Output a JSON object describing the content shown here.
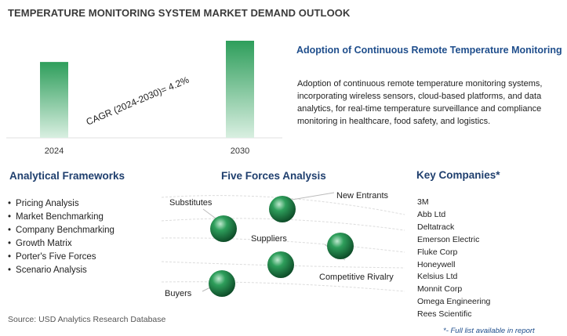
{
  "page": {
    "title": "TEMPERATURE MONITORING SYSTEM MARKET DEMAND OUTLOOK",
    "source": "Source: USD Analytics Research Database",
    "footnote": "*- Full list available in report"
  },
  "chart_data": {
    "type": "bar",
    "categories": [
      "2024",
      "2030"
    ],
    "values": [
      1.0,
      1.28
    ],
    "annotation": "CAGR (2024-2030)=  4.2%",
    "bar_color_top": "#2e9e5b",
    "bar_color_bottom": "#d9efe1",
    "grid": false,
    "legend": "none"
  },
  "side_panel": {
    "heading": "Adoption of Continuous Remote Temperature Monitoring",
    "body": "Adoption of continuous remote temperature monitoring systems, incorporating wireless sensors, cloud-based platforms, and data analytics, for real-time temperature surveillance and compliance monitoring in healthcare, food safety, and logistics."
  },
  "analytical_frameworks": {
    "title": "Analytical Frameworks",
    "items": [
      "Pricing Analysis",
      "Market Benchmarking",
      "Company Benchmarking",
      "Growth Matrix",
      "Porter's Five Forces",
      "Scenario Analysis"
    ]
  },
  "five_forces": {
    "title": "Five Forces Analysis",
    "labels": {
      "new_entrants": "New Entrants",
      "substitutes": "Substitutes",
      "suppliers": "Suppliers",
      "competitive_rivalry": "Competitive Rivalry",
      "buyers": "Buyers"
    },
    "sphere_color": "#2e9e5b"
  },
  "key_companies": {
    "title": "Key Companies*",
    "items": [
      "3M",
      "Abb Ltd",
      "Deltatrack",
      "Emerson Electric",
      "Fluke Corp",
      "Honeywell",
      "Kelsius Ltd",
      "Monnit Corp",
      "Omega Engineering",
      "Rees Scientific"
    ]
  }
}
